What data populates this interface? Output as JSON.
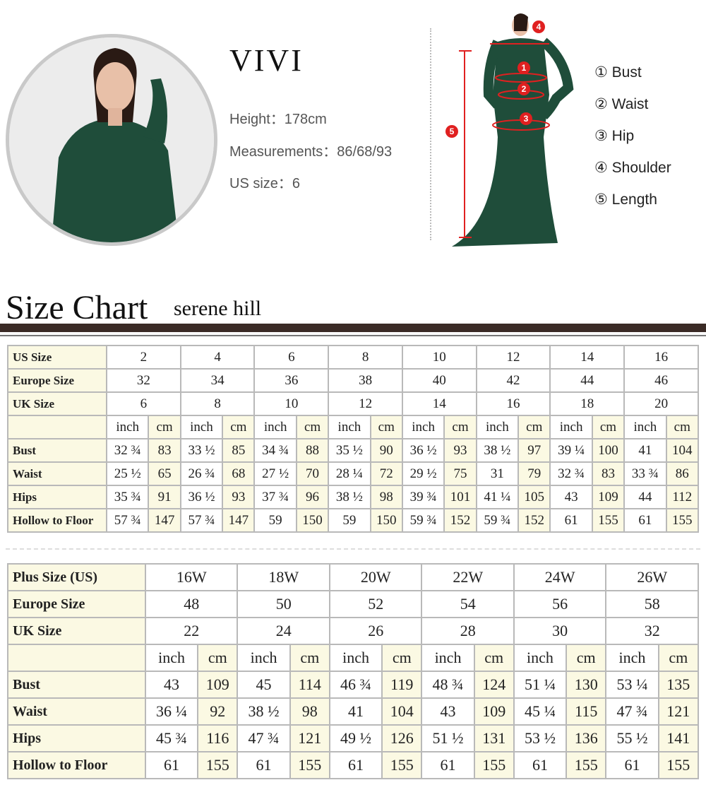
{
  "model": {
    "name": "VIVI",
    "height": "Height：178cm",
    "measurements": "Measurements：86/68/93",
    "us_size": "US size：6"
  },
  "legend": [
    "① Bust",
    "② Waist",
    "③ Hip",
    "④ Shoulder",
    "⑤ Length"
  ],
  "figure_markers": [
    "1",
    "2",
    "3",
    "4",
    "5"
  ],
  "colors": {
    "dress": "#1f4d3a",
    "marker": "#e02020",
    "cream": "#fbf9e3",
    "heading_bar": "#3b2b26"
  },
  "heading": {
    "title": "Size Chart",
    "brand": "serene hill"
  },
  "standard_table": {
    "size_rows": [
      {
        "label": "US Size",
        "values": [
          "2",
          "4",
          "6",
          "8",
          "10",
          "12",
          "14",
          "16"
        ]
      },
      {
        "label": "Europe Size",
        "values": [
          "32",
          "34",
          "36",
          "38",
          "40",
          "42",
          "44",
          "46"
        ]
      },
      {
        "label": "UK Size",
        "values": [
          "6",
          "8",
          "10",
          "12",
          "14",
          "16",
          "18",
          "20"
        ]
      }
    ],
    "units": [
      "inch",
      "cm"
    ],
    "measure_rows": [
      {
        "label": "Bust",
        "values": [
          "32 ¾",
          "83",
          "33 ½",
          "85",
          "34 ¾",
          "88",
          "35 ½",
          "90",
          "36 ½",
          "93",
          "38 ½",
          "97",
          "39 ¼",
          "100",
          "41",
          "104"
        ]
      },
      {
        "label": "Waist",
        "values": [
          "25 ½",
          "65",
          "26 ¾",
          "68",
          "27 ½",
          "70",
          "28 ¼",
          "72",
          "29 ½",
          "75",
          "31",
          "79",
          "32 ¾",
          "83",
          "33 ¾",
          "86"
        ]
      },
      {
        "label": "Hips",
        "values": [
          "35 ¾",
          "91",
          "36 ½",
          "93",
          "37 ¾",
          "96",
          "38 ½",
          "98",
          "39 ¾",
          "101",
          "41 ¼",
          "105",
          "43",
          "109",
          "44",
          "112"
        ]
      },
      {
        "label": "Hollow to Floor",
        "values": [
          "57 ¾",
          "147",
          "57 ¾",
          "147",
          "59",
          "150",
          "59",
          "150",
          "59 ¾",
          "152",
          "59 ¾",
          "152",
          "61",
          "155",
          "61",
          "155"
        ]
      }
    ]
  },
  "plus_table": {
    "size_rows": [
      {
        "label": "Plus Size (US)",
        "values": [
          "16W",
          "18W",
          "20W",
          "22W",
          "24W",
          "26W"
        ]
      },
      {
        "label": "Europe Size",
        "values": [
          "48",
          "50",
          "52",
          "54",
          "56",
          "58"
        ]
      },
      {
        "label": "UK Size",
        "values": [
          "22",
          "24",
          "26",
          "28",
          "30",
          "32"
        ]
      }
    ],
    "units": [
      "inch",
      "cm"
    ],
    "measure_rows": [
      {
        "label": "Bust",
        "values": [
          "43",
          "109",
          "45",
          "114",
          "46 ¾",
          "119",
          "48 ¾",
          "124",
          "51 ¼",
          "130",
          "53 ¼",
          "135"
        ]
      },
      {
        "label": "Waist",
        "values": [
          "36 ¼",
          "92",
          "38 ½",
          "98",
          "41",
          "104",
          "43",
          "109",
          "45 ¼",
          "115",
          "47 ¾",
          "121"
        ]
      },
      {
        "label": "Hips",
        "values": [
          "45 ¾",
          "116",
          "47 ¾",
          "121",
          "49 ½",
          "126",
          "51 ½",
          "131",
          "53 ½",
          "136",
          "55 ½",
          "141"
        ]
      },
      {
        "label": "Hollow to Floor",
        "values": [
          "61",
          "155",
          "61",
          "155",
          "61",
          "155",
          "61",
          "155",
          "61",
          "155",
          "61",
          "155"
        ]
      }
    ]
  }
}
